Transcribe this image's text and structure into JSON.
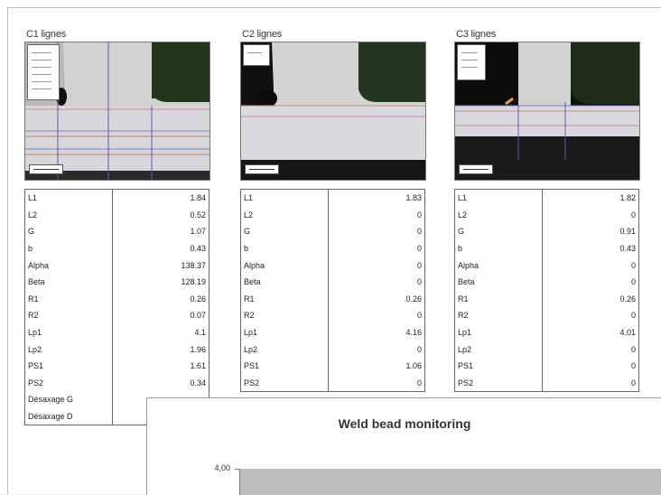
{
  "panels": [
    {
      "title": "C1 lignes",
      "rows": [
        {
          "label": "L1",
          "value": "1.84"
        },
        {
          "label": "L2",
          "value": "0.52"
        },
        {
          "label": "G",
          "value": "1.07"
        },
        {
          "label": "b",
          "value": "0.43"
        },
        {
          "label": "Alpha",
          "value": "138.37"
        },
        {
          "label": "Beta",
          "value": "128.19"
        },
        {
          "label": "R1",
          "value": "0.26"
        },
        {
          "label": "R2",
          "value": "0.07"
        },
        {
          "label": "Lp1",
          "value": "4.1"
        },
        {
          "label": "Lp2",
          "value": "1.96"
        },
        {
          "label": "PS1",
          "value": "1.61"
        },
        {
          "label": "PS2",
          "value": "0.34"
        },
        {
          "label": "Désaxage G",
          "value": ""
        },
        {
          "label": "Désaxage D",
          "value": ""
        }
      ]
    },
    {
      "title": "C2 lignes",
      "rows": [
        {
          "label": "L1",
          "value": "1.83"
        },
        {
          "label": "L2",
          "value": "0"
        },
        {
          "label": "G",
          "value": "0"
        },
        {
          "label": "b",
          "value": "0"
        },
        {
          "label": "Alpha",
          "value": "0"
        },
        {
          "label": "Beta",
          "value": "0"
        },
        {
          "label": "R1",
          "value": "0.26"
        },
        {
          "label": "R2",
          "value": "0"
        },
        {
          "label": "Lp1",
          "value": "4.16"
        },
        {
          "label": "Lp2",
          "value": "0"
        },
        {
          "label": "PS1",
          "value": "1.06"
        },
        {
          "label": "PS2",
          "value": "0"
        }
      ]
    },
    {
      "title": "C3 lignes",
      "rows": [
        {
          "label": "L1",
          "value": "1.82"
        },
        {
          "label": "L2",
          "value": "0"
        },
        {
          "label": "G",
          "value": "0.91"
        },
        {
          "label": "b",
          "value": "0.43"
        },
        {
          "label": "Alpha",
          "value": "0"
        },
        {
          "label": "Beta",
          "value": "0"
        },
        {
          "label": "R1",
          "value": "0.26"
        },
        {
          "label": "R2",
          "value": "0"
        },
        {
          "label": "Lp1",
          "value": "4.01"
        },
        {
          "label": "Lp2",
          "value": "0"
        },
        {
          "label": "PS1",
          "value": "0"
        },
        {
          "label": "PS2",
          "value": "0"
        }
      ]
    }
  ],
  "chart": {
    "title": "Weld bead monitoring",
    "y_tick_top": "4,00"
  }
}
